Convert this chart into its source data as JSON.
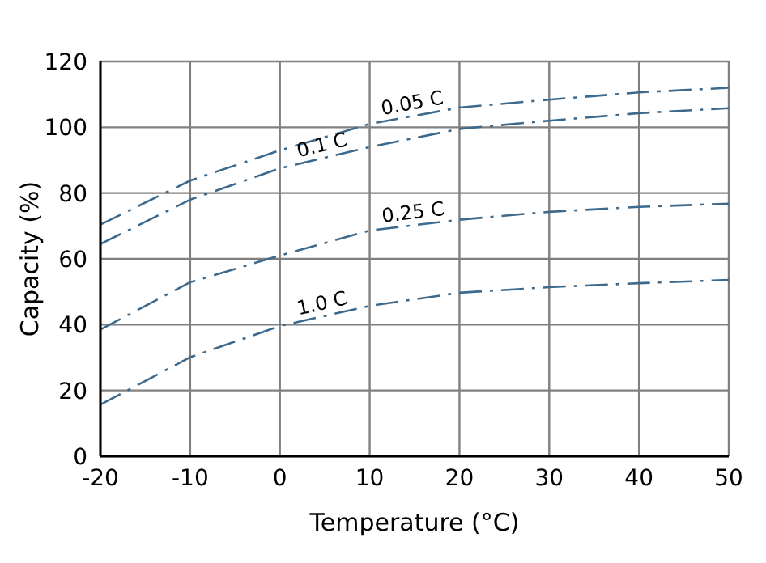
{
  "chart_data": {
    "type": "line",
    "xlabel": "Temperature (°C)",
    "ylabel": "Capacity (%)",
    "x": [
      -20,
      -10,
      0,
      10,
      20,
      30,
      40,
      50
    ],
    "series": [
      {
        "name": "0.05 C",
        "color": "#3d6a8c",
        "values": [
          70.4,
          83.8,
          93,
          101,
          106,
          108.4,
          110.6,
          112
        ]
      },
      {
        "name": "0.1 C",
        "color": "#3d6a8c",
        "values": [
          64.5,
          78,
          87.5,
          94,
          99.5,
          102,
          104.3,
          105.8
        ]
      },
      {
        "name": "0.25 C",
        "color": "#3d6a8c",
        "values": [
          38.5,
          52.9,
          61,
          68.6,
          71.9,
          74.3,
          75.8,
          76.8
        ]
      },
      {
        "name": "1.0 C",
        "color": "#3d6a8c",
        "values": [
          15.7,
          30.1,
          39.6,
          45.7,
          49.7,
          51.4,
          52.6,
          53.6
        ]
      }
    ],
    "xlim": [
      -20,
      50
    ],
    "xticks": [
      -20,
      -10,
      0,
      10,
      20,
      30,
      40,
      50
    ],
    "ylim": [
      0,
      120
    ],
    "yticks": [
      0,
      20,
      40,
      60,
      80,
      100,
      120
    ],
    "grid": true,
    "legend": false,
    "marker": "none",
    "line_style": "dashed"
  }
}
